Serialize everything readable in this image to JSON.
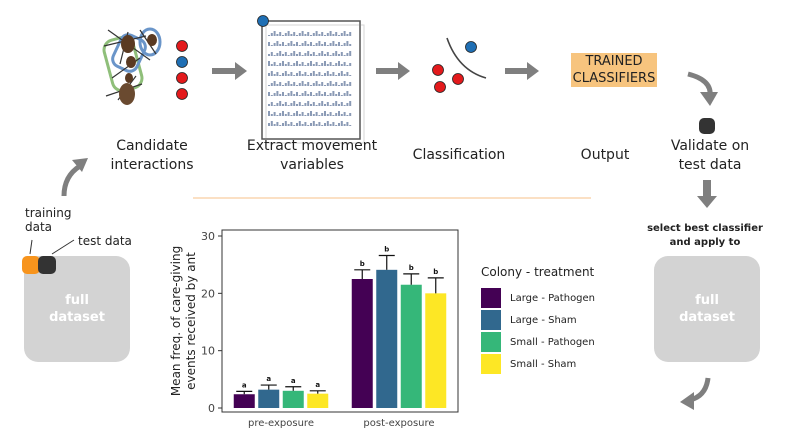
{
  "pipeline": {
    "steps": [
      {
        "label": "Candidate\ninteractions"
      },
      {
        "label": "Extract movement\nvariables"
      },
      {
        "label": "Classification"
      },
      {
        "label": "Output"
      },
      {
        "label": "Validate on\ntest data"
      }
    ],
    "trained_classifiers": "TRAINED\nCLASSIFIERS",
    "training_data_label": "training\ndata",
    "test_data_label": "test data",
    "full_dataset_left": "full\ndataset",
    "full_dataset_right": "full\ndataset",
    "select_best": "select best classifier\nand apply to"
  },
  "colors": {
    "point_red": "#e31a1c",
    "point_blue": "#1f6fb4",
    "arrow_gray": "#7f7f7f",
    "classifier_highlight": "#f7c47e",
    "dataset_box": "#d3d3d3",
    "training_dot": "#f7941d",
    "test_dot": "#333333"
  },
  "legend": {
    "title": "Colony - treatment",
    "items": [
      {
        "label": "Large - Pathogen",
        "color": "#440154"
      },
      {
        "label": "Large - Sham",
        "color": "#31688e"
      },
      {
        "label": "Small - Pathogen",
        "color": "#35b779"
      },
      {
        "label": "Small - Sham",
        "color": "#fde725"
      }
    ]
  },
  "chart_data": {
    "type": "bar",
    "ylabel": "Mean freq. of care-giving\nevents received by ant",
    "ylim": [
      0,
      30
    ],
    "yticks": [
      0,
      10,
      20,
      30
    ],
    "categories": [
      "pre-exposure",
      "post-exposure"
    ],
    "series": [
      {
        "name": "Large - Pathogen",
        "color": "#440154",
        "values": [
          2.4,
          22.5
        ],
        "errors": [
          0.5,
          1.6
        ],
        "letters": [
          "a",
          "b"
        ]
      },
      {
        "name": "Large - Sham",
        "color": "#31688e",
        "values": [
          3.2,
          24.1
        ],
        "errors": [
          0.8,
          2.5
        ],
        "letters": [
          "a",
          "b"
        ]
      },
      {
        "name": "Small - Pathogen",
        "color": "#35b779",
        "values": [
          3.0,
          21.5
        ],
        "errors": [
          0.7,
          1.9
        ],
        "letters": [
          "a",
          "b"
        ]
      },
      {
        "name": "Small - Sham",
        "color": "#fde725",
        "values": [
          2.5,
          20.0
        ],
        "errors": [
          0.5,
          2.7
        ],
        "letters": [
          "a",
          "b"
        ]
      }
    ]
  }
}
